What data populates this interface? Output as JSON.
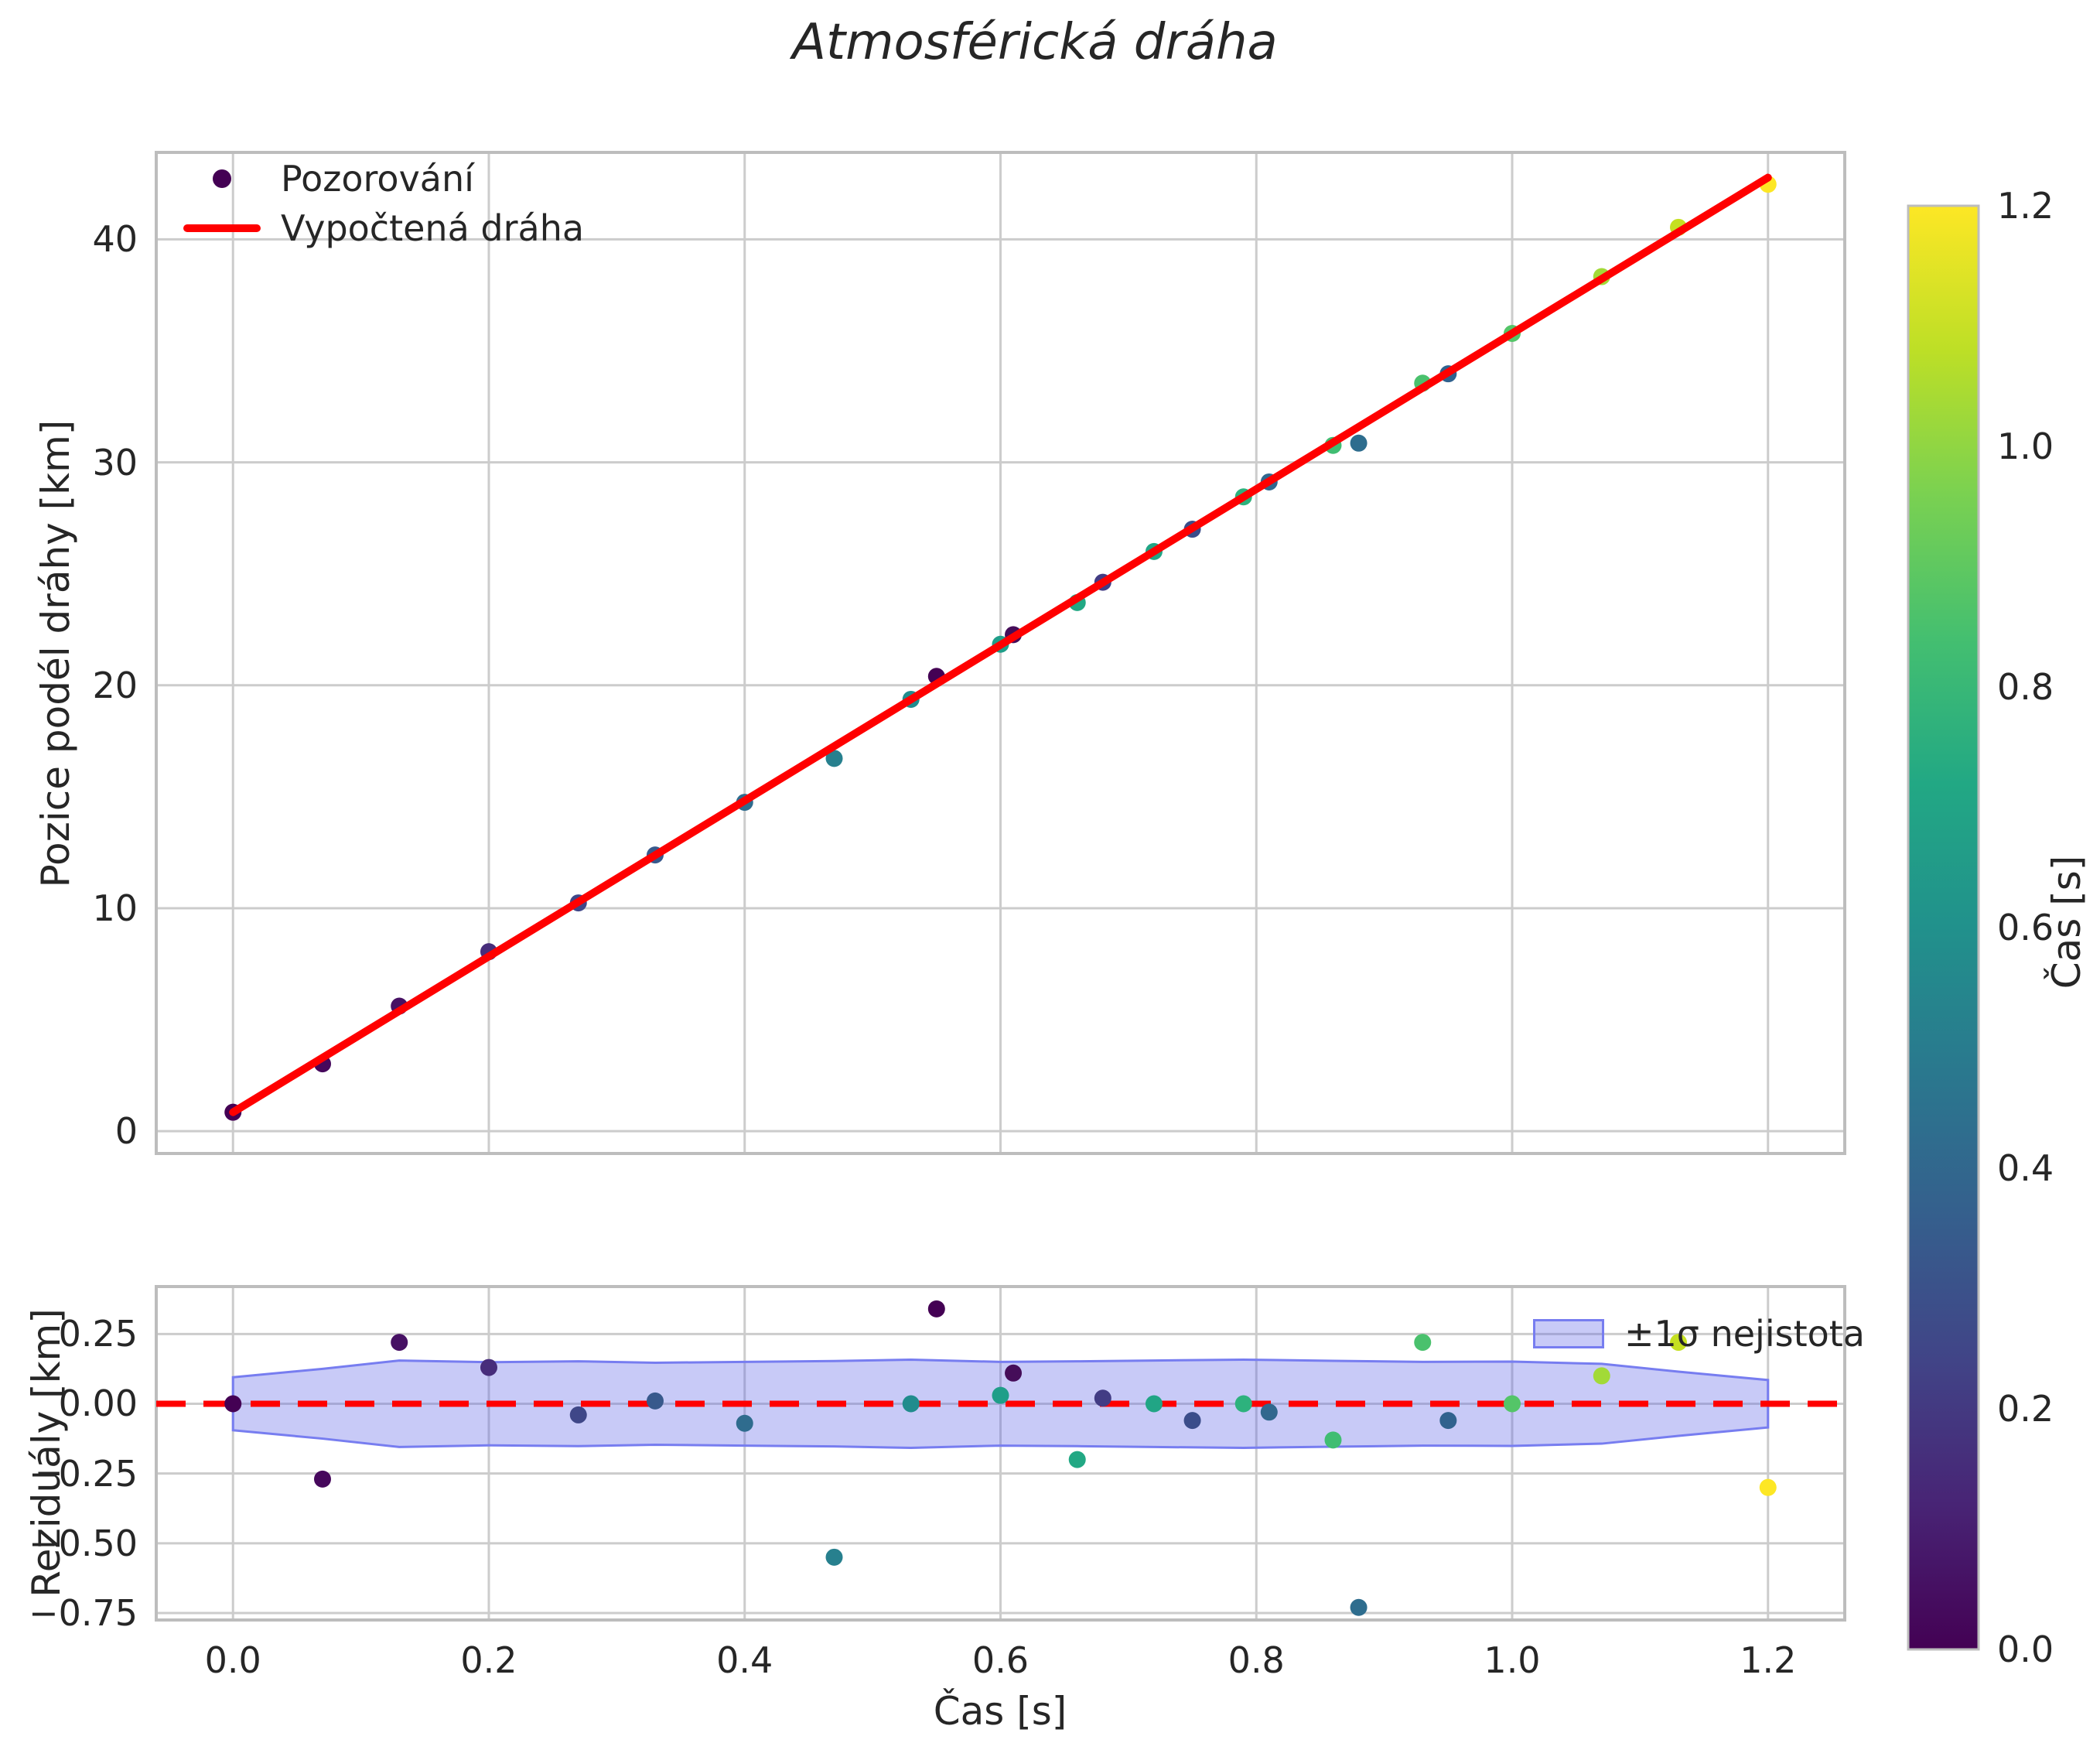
{
  "title": "Atmosférická dráha",
  "palette": {
    "figure_bg": "#ffffff",
    "line_red": "#ff0000",
    "grid": "#cccccc",
    "spine": "#bdbdbd",
    "text": "#262626",
    "band_fill": "rgba(88,94,231,0.33)",
    "band_edge": "#777df0",
    "legend_dot": "#440154"
  },
  "chart_data": [
    {
      "id": "trajectory",
      "type": "scatter",
      "ylabel": "Pozice podél dráhy [km]",
      "xlim": [
        -0.06,
        1.26
      ],
      "ylim": [
        -1.0,
        43.9
      ],
      "grid": "on",
      "xticks": {
        "values": [
          0.0,
          0.2,
          0.4,
          0.6,
          0.8,
          1.0,
          1.2
        ],
        "labels": []
      },
      "yticks": {
        "values": [
          0,
          10,
          20,
          30,
          40
        ],
        "labels": [
          "0",
          "10",
          "20",
          "30",
          "40"
        ]
      },
      "legend": {
        "position": "upper-left",
        "items": [
          {
            "label": "Pozorování",
            "marker": "dot"
          },
          {
            "label": "Vypočtená dráha",
            "marker": "line"
          }
        ]
      },
      "series": [
        {
          "name": "Pozorování",
          "type": "scatter",
          "x": [
            0.0,
            0.07,
            0.13,
            0.2,
            0.27,
            0.33,
            0.4,
            0.47,
            0.53,
            0.55,
            0.6,
            0.61,
            0.66,
            0.68,
            0.72,
            0.75,
            0.79,
            0.81,
            0.86,
            0.88,
            0.93,
            0.95,
            1.0,
            1.07,
            1.13,
            1.2
          ],
          "y": [
            0.85,
            3.02,
            5.61,
            8.05,
            10.24,
            12.39,
            14.75,
            16.72,
            19.37,
            20.4,
            21.84,
            22.27,
            23.71,
            24.62,
            26.0,
            27.0,
            28.45,
            29.12,
            30.76,
            30.86,
            33.55,
            33.97,
            35.78,
            38.33,
            40.54,
            42.47
          ],
          "point_colors": [
            "#440154",
            "#46085c",
            "#471164",
            "#472d7b",
            "#3f4788",
            "#38598c",
            "#2f6c8e",
            "#27808e",
            "#218c8d",
            "#440154",
            "#1f9e89",
            "#450d59",
            "#22a884",
            "#423c84",
            "#21a585",
            "#3b4d8a",
            "#2db27d",
            "#31688e",
            "#40bd72",
            "#2e6d8e",
            "#4ac16d",
            "#30628e",
            "#54c568",
            "#a2da37",
            "#c5e021",
            "#fde725"
          ]
        },
        {
          "name": "Vypočtená dráha",
          "type": "line",
          "color": "#ff0000",
          "x": [
            0.0,
            1.2
          ],
          "y": [
            0.85,
            42.77
          ]
        }
      ]
    },
    {
      "id": "residuals",
      "type": "scatter",
      "xlabel": "Čas [s]",
      "ylabel": "Reziduály [km]",
      "xlim": [
        -0.06,
        1.26
      ],
      "ylim": [
        -0.775,
        0.42
      ],
      "grid": "on",
      "xticks": {
        "values": [
          0.0,
          0.2,
          0.4,
          0.6,
          0.8,
          1.0,
          1.2
        ],
        "labels": [
          "0.0",
          "0.2",
          "0.4",
          "0.6",
          "0.8",
          "1.0",
          "1.2"
        ]
      },
      "yticks": {
        "values": [
          0.25,
          0.0,
          -0.25,
          -0.5,
          -0.75
        ],
        "labels": [
          "0.25",
          "0.00",
          "−0.25",
          "−0.50",
          "−0.75"
        ]
      },
      "zero_line": {
        "color": "#ff0000",
        "style": "dashed",
        "y": 0.0
      },
      "band": {
        "label": "±1σ nejistota",
        "x": [
          0.0,
          0.07,
          0.13,
          0.2,
          0.27,
          0.33,
          0.4,
          0.47,
          0.53,
          0.6,
          0.66,
          0.72,
          0.79,
          0.86,
          0.93,
          1.0,
          1.07,
          1.13,
          1.2
        ],
        "sigma": [
          0.095,
          0.125,
          0.155,
          0.149,
          0.152,
          0.147,
          0.15,
          0.153,
          0.158,
          0.15,
          0.152,
          0.155,
          0.158,
          0.154,
          0.15,
          0.151,
          0.143,
          0.115,
          0.085
        ]
      },
      "legend": {
        "position": "upper-right"
      },
      "series": [
        {
          "name": "Reziduály",
          "type": "scatter",
          "x": [
            0.0,
            0.07,
            0.13,
            0.2,
            0.27,
            0.33,
            0.4,
            0.47,
            0.53,
            0.55,
            0.6,
            0.61,
            0.66,
            0.68,
            0.72,
            0.75,
            0.79,
            0.81,
            0.86,
            0.88,
            0.93,
            0.95,
            1.0,
            1.07,
            1.13,
            1.2
          ],
          "y": [
            0.0,
            -0.27,
            0.22,
            0.13,
            -0.04,
            0.01,
            -0.07,
            -0.55,
            0.0,
            0.34,
            0.03,
            0.11,
            -0.2,
            0.02,
            0.0,
            -0.06,
            0.0,
            -0.03,
            -0.13,
            -0.73,
            0.22,
            -0.06,
            0.0,
            0.1,
            0.22,
            -0.3
          ],
          "point_colors": [
            "#440154",
            "#46085c",
            "#471164",
            "#472d7b",
            "#3f4788",
            "#38598c",
            "#2f6c8e",
            "#27808e",
            "#218c8d",
            "#440154",
            "#1f9e89",
            "#450d59",
            "#22a884",
            "#423c84",
            "#21a585",
            "#3b4d8a",
            "#2db27d",
            "#31688e",
            "#40bd72",
            "#2e6d8e",
            "#4ac16d",
            "#30628e",
            "#54c568",
            "#a2da37",
            "#c5e021",
            "#fde725"
          ]
        }
      ]
    },
    {
      "id": "colorbar",
      "type": "colorbar",
      "label": "Čas [s]",
      "range": [
        0.0,
        1.2
      ],
      "colormap": "viridis",
      "ticks": {
        "values": [
          0.0,
          0.2,
          0.4,
          0.6,
          0.8,
          1.0,
          1.2
        ],
        "labels": [
          "0.0",
          "0.2",
          "0.4",
          "0.6",
          "0.8",
          "1.0",
          "1.2"
        ]
      },
      "stops": [
        [
          "0.0",
          "#440154"
        ],
        [
          "0.1",
          "#482475"
        ],
        [
          "0.2",
          "#414487"
        ],
        [
          "0.3",
          "#355f8d"
        ],
        [
          "0.4",
          "#2a788e"
        ],
        [
          "0.5",
          "#21918c"
        ],
        [
          "0.6",
          "#22a884"
        ],
        [
          "0.7",
          "#44bf70"
        ],
        [
          "0.8",
          "#7ad151"
        ],
        [
          "0.9",
          "#bddf26"
        ],
        [
          "1.0",
          "#fde725"
        ]
      ]
    }
  ]
}
